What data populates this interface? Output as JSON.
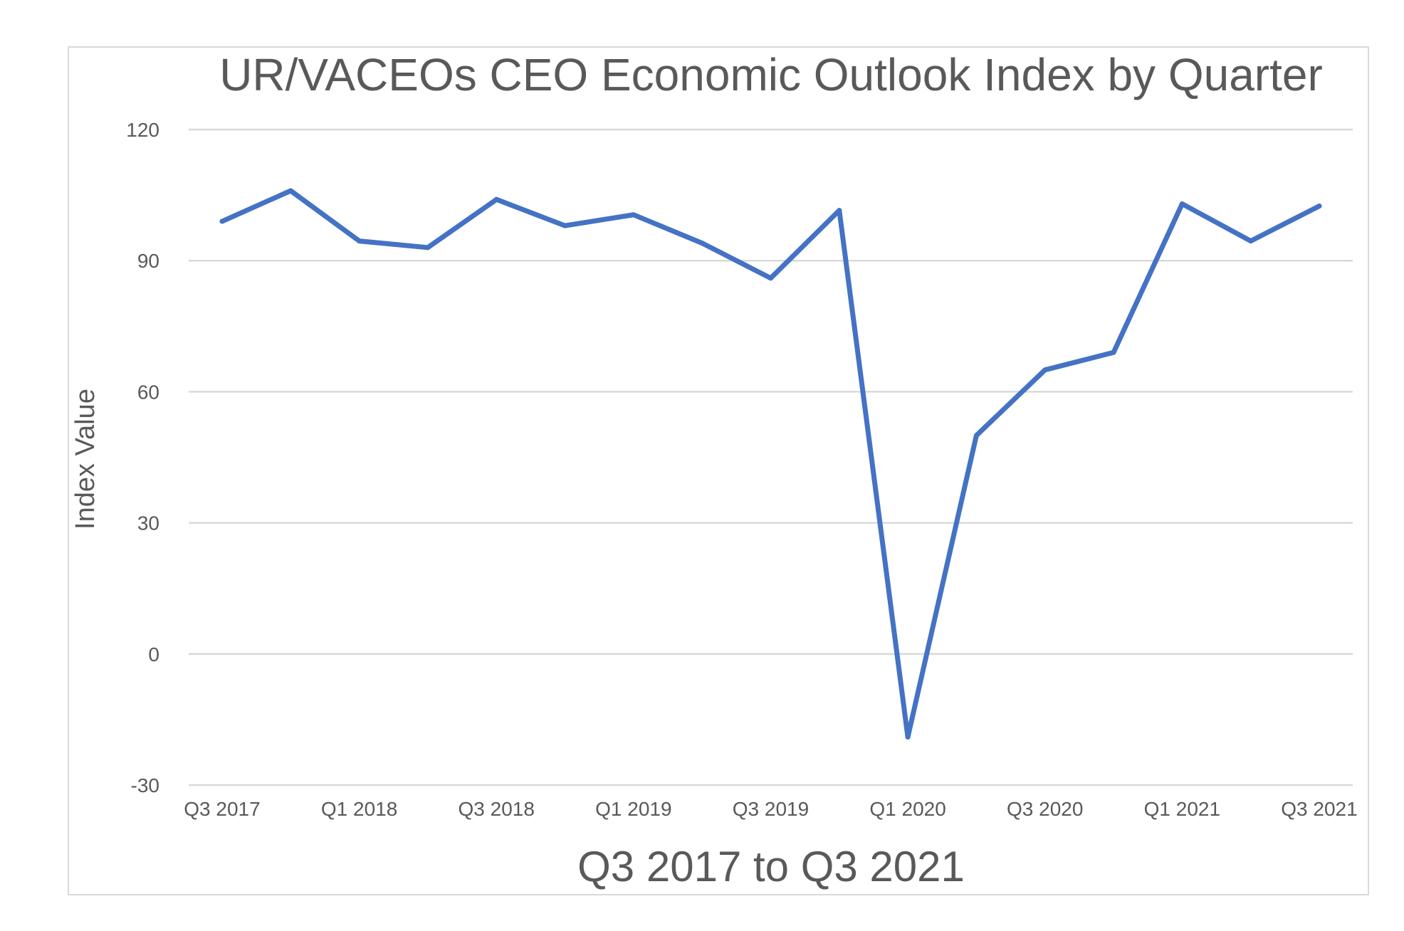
{
  "chart_data": {
    "type": "line",
    "title": "UR/VACEOs CEO Economic Outlook Index by Quarter",
    "xlabel": "Q3 2017 to Q3 2021",
    "ylabel": "Index Value",
    "ylim": [
      -30,
      120
    ],
    "yticks": [
      "120",
      "90",
      "60",
      "30",
      "0",
      "-30"
    ],
    "ytick_values": [
      120,
      90,
      60,
      30,
      0,
      -30
    ],
    "categories": [
      "Q3 2017",
      "Q4 2017",
      "Q1 2018",
      "Q2 2018",
      "Q3 2018",
      "Q4 2018",
      "Q1 2019",
      "Q2 2019",
      "Q3 2019",
      "Q4 2019",
      "Q1 2020",
      "Q2 2020",
      "Q3 2020",
      "Q4 2020",
      "Q1 2021",
      "Q2 2021",
      "Q3 2021"
    ],
    "xtick_labels": [
      "Q3 2017",
      "",
      "Q1 2018",
      "",
      "Q3 2018",
      "",
      "Q1 2019",
      "",
      "Q3 2019",
      "",
      "Q1 2020",
      "",
      "Q3 2020",
      "",
      "Q1 2021",
      "",
      "Q3 2021"
    ],
    "series": [
      {
        "values": [
          99,
          106,
          94.5,
          93,
          104,
          98,
          100.5,
          94,
          86,
          101.5,
          -19,
          50,
          65,
          69,
          103,
          94.5,
          102.5
        ]
      }
    ],
    "grid": true,
    "legend": "none",
    "line_color": "#4472c4"
  }
}
